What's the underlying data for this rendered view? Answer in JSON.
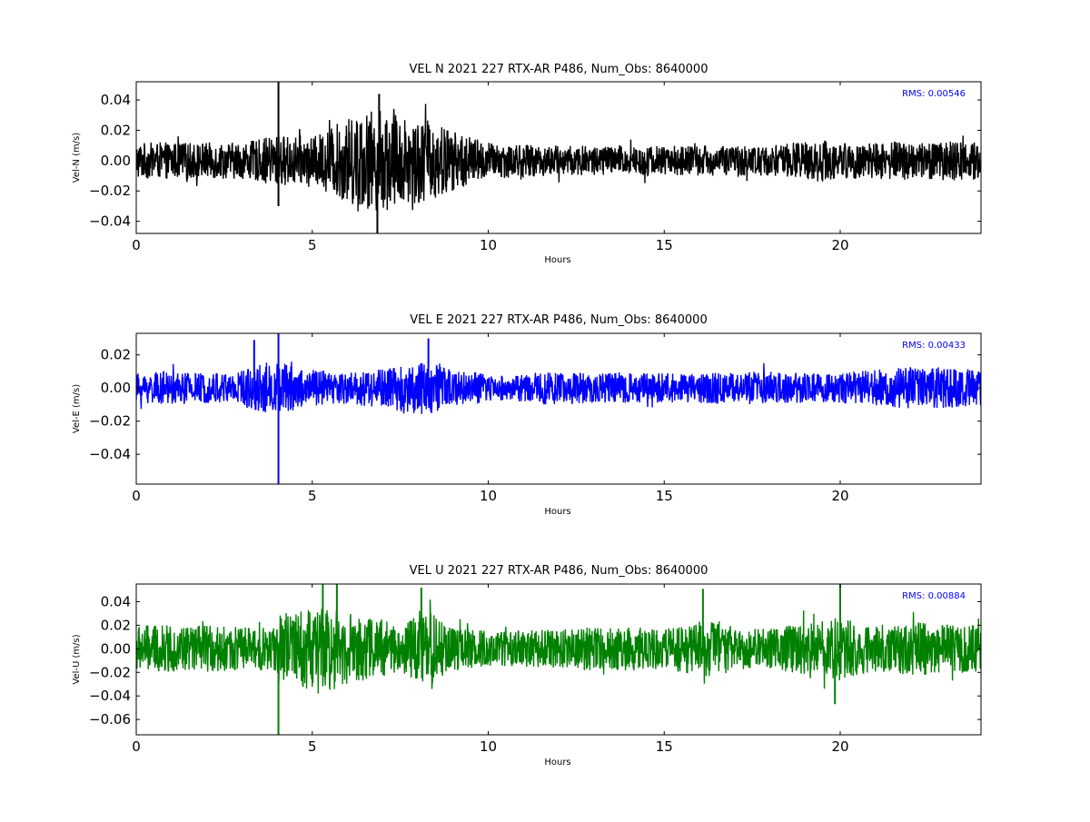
{
  "colors": {
    "background": "#ffffff",
    "rms_text": "#0000ff"
  },
  "chart_data": [
    {
      "type": "line",
      "title": "VEL N 2021 227 RTX-AR  P486, Num_Obs: 8640000",
      "xlabel": "Hours",
      "ylabel": "Vel-N (m/s)",
      "xlim": [
        0,
        24
      ],
      "ylim": [
        -0.048,
        0.052
      ],
      "xticks": [
        0,
        5,
        10,
        15,
        20
      ],
      "xtick_labels": [
        "0",
        "5",
        "10",
        "15",
        "20"
      ],
      "yticks": [
        -0.04,
        -0.02,
        0.0,
        0.02,
        0.04
      ],
      "ytick_labels": [
        "−0.04",
        "−0.02",
        "0.00",
        "0.02",
        "0.04"
      ],
      "annotation": "RMS:  0.00546",
      "grid": false,
      "series": [
        {
          "color": "#000000",
          "envelope_hours": [
            0,
            1,
            2,
            3,
            3.5,
            4,
            4.5,
            5,
            5.5,
            6,
            6.5,
            7,
            7.5,
            8,
            8.5,
            9,
            9.5,
            10,
            11,
            12,
            13,
            14,
            15,
            16,
            17,
            18,
            19,
            19.5,
            20,
            21,
            22,
            23,
            24
          ],
          "envelope_amplitude": [
            0.012,
            0.012,
            0.012,
            0.012,
            0.014,
            0.017,
            0.016,
            0.015,
            0.022,
            0.028,
            0.032,
            0.034,
            0.03,
            0.028,
            0.026,
            0.02,
            0.016,
            0.012,
            0.011,
            0.01,
            0.01,
            0.01,
            0.01,
            0.01,
            0.01,
            0.01,
            0.013,
            0.014,
            0.012,
            0.012,
            0.013,
            0.013,
            0.013
          ],
          "spikes": [
            [
              4.04,
              0.052
            ],
            [
              4.04,
              -0.03
            ],
            [
              6.85,
              -0.048
            ],
            [
              6.9,
              0.044
            ]
          ]
        }
      ]
    },
    {
      "type": "line",
      "title": "VEL E 2021 227 RTX-AR  P486, Num_Obs: 8640000",
      "xlabel": "Hours",
      "ylabel": "Vel-E (m/s)",
      "xlim": [
        0,
        24
      ],
      "ylim": [
        -0.058,
        0.033
      ],
      "xticks": [
        0,
        5,
        10,
        15,
        20
      ],
      "xtick_labels": [
        "0",
        "5",
        "10",
        "15",
        "20"
      ],
      "yticks": [
        -0.04,
        -0.02,
        0.0,
        0.02
      ],
      "ytick_labels": [
        "−0.04",
        "−0.02",
        "0.00",
        "0.02"
      ],
      "annotation": "RMS:  0.00433",
      "grid": false,
      "series": [
        {
          "color": "#0000ff",
          "envelope_hours": [
            0,
            1,
            2,
            3,
            3.5,
            4,
            4.5,
            5,
            6,
            7,
            7.5,
            8,
            8.5,
            9,
            10,
            10.5,
            11,
            12,
            13,
            14,
            15,
            16,
            17,
            18,
            19,
            20,
            21,
            22,
            23,
            24
          ],
          "envelope_amplitude": [
            0.009,
            0.01,
            0.009,
            0.011,
            0.015,
            0.016,
            0.014,
            0.011,
            0.01,
            0.012,
            0.014,
            0.016,
            0.015,
            0.011,
            0.009,
            0.007,
            0.009,
            0.01,
            0.009,
            0.009,
            0.009,
            0.009,
            0.01,
            0.01,
            0.009,
            0.009,
            0.011,
            0.013,
            0.012,
            0.011
          ],
          "spikes": [
            [
              4.04,
              0.033
            ],
            [
              4.04,
              -0.058
            ],
            [
              3.35,
              0.029
            ],
            [
              8.3,
              0.03
            ]
          ]
        }
      ]
    },
    {
      "type": "line",
      "title": "VEL U 2021 227 RTX-AR  P486, Num_Obs: 8640000",
      "xlabel": "Hours",
      "ylabel": "Vel-U (m/s)",
      "xlim": [
        0,
        24
      ],
      "ylim": [
        -0.073,
        0.055
      ],
      "xticks": [
        0,
        5,
        10,
        15,
        20
      ],
      "xtick_labels": [
        "0",
        "5",
        "10",
        "15",
        "20"
      ],
      "yticks": [
        -0.06,
        -0.04,
        -0.02,
        0.0,
        0.02,
        0.04
      ],
      "ytick_labels": [
        "−0.06",
        "−0.04",
        "−0.02",
        "0.00",
        "0.02",
        "0.04"
      ],
      "annotation": "RMS:  0.00884",
      "grid": false,
      "series": [
        {
          "color": "#008000",
          "envelope_hours": [
            0,
            1,
            2,
            3,
            3.9,
            4.1,
            5,
            5.5,
            6,
            7,
            7.5,
            8,
            8.5,
            9,
            10,
            11,
            12,
            13,
            14,
            15,
            16,
            16.5,
            17,
            18,
            19,
            20,
            20.5,
            21,
            22,
            23,
            24
          ],
          "envelope_amplitude": [
            0.02,
            0.02,
            0.02,
            0.019,
            0.018,
            0.03,
            0.035,
            0.036,
            0.03,
            0.025,
            0.018,
            0.032,
            0.03,
            0.018,
            0.015,
            0.016,
            0.016,
            0.019,
            0.019,
            0.017,
            0.023,
            0.025,
            0.018,
            0.017,
            0.022,
            0.027,
            0.022,
            0.02,
            0.023,
            0.021,
            0.02
          ],
          "spikes": [
            [
              4.04,
              -0.073
            ],
            [
              5.3,
              0.055
            ],
            [
              5.7,
              0.055
            ],
            [
              8.1,
              0.052
            ],
            [
              16.1,
              0.051
            ],
            [
              20.0,
              0.055
            ],
            [
              19.85,
              -0.047
            ]
          ]
        }
      ]
    }
  ]
}
